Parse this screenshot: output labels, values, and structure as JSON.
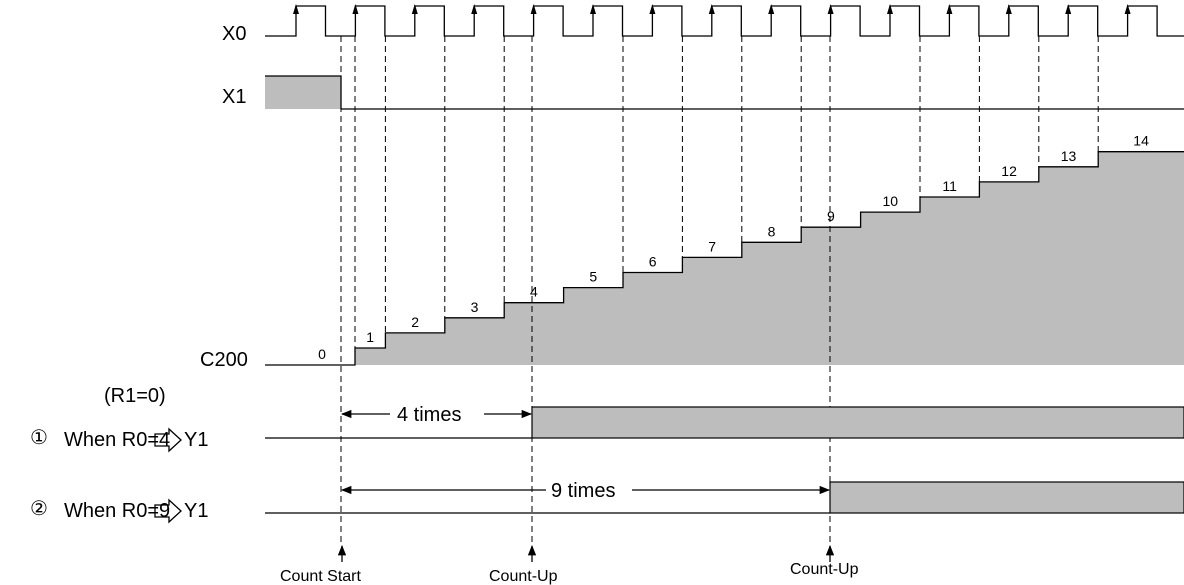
{
  "signals": {
    "x0": "X0",
    "x1": "X1",
    "c200": "C200",
    "r1_note": "(R1=0)"
  },
  "conditions": [
    {
      "marker": "①",
      "text": "When R0=4",
      "output": "Y1",
      "interval": "4 times"
    },
    {
      "marker": "②",
      "text": "When R0=9",
      "output": "Y1",
      "interval": "9 times"
    }
  ],
  "counter_values": [
    "0",
    "1",
    "2",
    "3",
    "4",
    "5",
    "6",
    "7",
    "8",
    "9",
    "10",
    "11",
    "12",
    "13",
    "14"
  ],
  "events": {
    "count_start": "Count Start",
    "count_up_1": "Count-Up",
    "count_up_2": "Count-Up"
  },
  "colors": {
    "active_fill": "#bdbdbd",
    "line": "#000000"
  },
  "icons": {
    "rising_edge": "up-arrow-icon",
    "assign": "outline-right-arrow-icon"
  }
}
